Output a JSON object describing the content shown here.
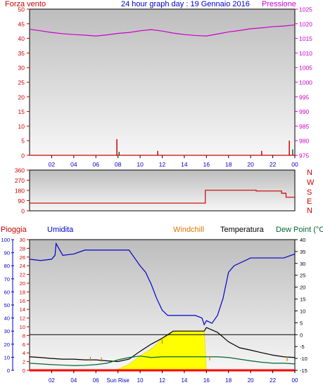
{
  "header": {
    "title": "24 hour graph day : 19 Gennaio 2016",
    "left_label": "Forza vento",
    "right_label": "Pressione"
  },
  "panel_labels": {
    "pioggia": "Pioggia",
    "umidita": "Umidita",
    "windchill": "Windchill",
    "temperatura": "Temperatura",
    "dewpoint": "Dew Point (°C"
  },
  "wind_compass": [
    "N",
    "W",
    "S",
    "E",
    "N"
  ],
  "sunrise_label": "Sun Rise",
  "colors": {
    "background": "#ffffff",
    "plot_bg_top": "#bdbdbd",
    "plot_bg_bottom": "#f6f6f6",
    "pressure": "#cc00cc",
    "wind": "#cc0000",
    "humidity": "#0000cc",
    "temperature": "#000000",
    "dewpoint": "#006633",
    "windchill": "#dd7700",
    "solar": "#ffff00",
    "rain": "#ff0000",
    "axis_red": "#cc0000",
    "axis_magenta": "#cc00cc",
    "axis_blue": "#0000cc",
    "axis_black": "#000000"
  },
  "chart_data": [
    {
      "type": "line",
      "name": "wind_pressure",
      "x_ticks": [
        "02",
        "04",
        "06",
        "08",
        "10",
        "12",
        "14",
        "16",
        "18",
        "20",
        "22",
        "00"
      ],
      "x_range_hours": [
        0,
        24
      ],
      "y_left": {
        "label": "Forza vento",
        "range": [
          0,
          50
        ],
        "ticks": [
          0,
          5,
          10,
          15,
          20,
          25,
          30,
          35,
          40,
          45,
          50
        ]
      },
      "y_right": {
        "label": "Pressione",
        "range": [
          975,
          1025
        ],
        "ticks": [
          975,
          980,
          985,
          990,
          995,
          1000,
          1005,
          1010,
          1015,
          1020,
          1025
        ]
      },
      "series": [
        {
          "name": "Pressione",
          "axis": "right",
          "color": "#cc00cc",
          "x": [
            0,
            1,
            2,
            3,
            4,
            5,
            6,
            7,
            8,
            9,
            10,
            11,
            12,
            13,
            14,
            15,
            16,
            17,
            18,
            19,
            20,
            21,
            22,
            23,
            24
          ],
          "values": [
            1018.1,
            1017.6,
            1017.0,
            1016.6,
            1016.3,
            1016.1,
            1015.8,
            1016.2,
            1016.7,
            1017.0,
            1017.6,
            1018.0,
            1017.5,
            1016.8,
            1016.3,
            1016.0,
            1015.8,
            1016.5,
            1017.2,
            1017.7,
            1018.3,
            1018.6,
            1019.0,
            1019.2,
            1019.6
          ]
        },
        {
          "name": "Forza vento (gust)",
          "axis": "left",
          "color": "#cc0000",
          "kind": "spikes",
          "x": [
            7.9,
            11.6,
            21.0,
            23.5
          ],
          "values": [
            5.5,
            1.5,
            1.5,
            5.0
          ]
        },
        {
          "name": "Forza vento (avg)",
          "axis": "left",
          "color": "#006633",
          "kind": "spikes",
          "x": [
            8.1,
            23.8
          ],
          "values": [
            1.2,
            2.0
          ]
        }
      ]
    },
    {
      "type": "line",
      "name": "wind_direction",
      "x_range_hours": [
        0,
        24
      ],
      "y_left": {
        "range": [
          0,
          360
        ],
        "ticks": [
          0,
          90,
          180,
          270,
          360
        ]
      },
      "series": [
        {
          "name": "Direzione",
          "color": "#cc0000",
          "step": true,
          "x": [
            0,
            15.9,
            15.9,
            20.5,
            20.5,
            22.8,
            22.8,
            23.2,
            23.2,
            24
          ],
          "values": [
            68,
            68,
            182,
            182,
            175,
            175,
            155,
            155,
            120,
            120
          ]
        }
      ]
    },
    {
      "type": "line",
      "name": "humidity_temperature",
      "x_ticks": [
        "02",
        "04",
        "06",
        "Sun Rise",
        "10",
        "12",
        "14",
        "16",
        "18",
        "20",
        "22",
        "00"
      ],
      "x_range_hours": [
        0,
        24
      ],
      "y_pioggia": {
        "label": "Pioggia",
        "range": [
          0,
          30
        ],
        "ticks": [
          0,
          2,
          4,
          6,
          8,
          10,
          12,
          14,
          16,
          18,
          20,
          22,
          24,
          26,
          28,
          30
        ]
      },
      "y_umidita": {
        "label": "Umidita",
        "range": [
          0,
          100
        ],
        "ticks": [
          0,
          10,
          20,
          30,
          40,
          50,
          60,
          70,
          80,
          90,
          100
        ]
      },
      "y_right": {
        "label": "Temperatura",
        "range": [
          -15,
          40
        ],
        "ticks": [
          -15,
          -10,
          -5,
          0,
          5,
          10,
          15,
          20,
          25,
          30,
          35,
          40
        ]
      },
      "reference_line_temp": 0,
      "series": [
        {
          "name": "Umidita",
          "axis": "umidita",
          "color": "#0000cc",
          "x": [
            0,
            1,
            2,
            2.3,
            2.4,
            3,
            4,
            5,
            6,
            7,
            8,
            9,
            9.5,
            10,
            10.5,
            11,
            11.5,
            12,
            12.5,
            13,
            14,
            15,
            15.6,
            15.8,
            16,
            16.5,
            17,
            17.5,
            18,
            18.5,
            19,
            20,
            21,
            22,
            23,
            24
          ],
          "values": [
            85,
            84,
            85,
            88,
            97,
            88,
            89,
            92,
            92,
            92,
            92,
            92,
            86,
            80,
            75,
            66,
            55,
            46,
            42,
            42,
            42,
            42,
            40,
            35,
            38,
            36,
            42,
            55,
            75,
            80,
            82,
            86,
            86,
            86,
            86,
            89
          ]
        },
        {
          "name": "Temperatura",
          "axis": "right",
          "color": "#000000",
          "x": [
            0,
            1,
            2,
            3,
            4,
            5,
            6,
            7,
            8,
            9,
            10,
            11,
            12,
            13,
            14,
            15,
            15.8,
            16,
            17,
            18,
            19,
            20,
            21,
            22,
            23,
            24
          ],
          "values": [
            -9.3,
            -9.6,
            -10.0,
            -10.3,
            -10.3,
            -10.6,
            -10.6,
            -11.0,
            -11.3,
            -10.3,
            -7.0,
            -4.0,
            -1.5,
            1.5,
            1.5,
            1.5,
            1.5,
            3.0,
            1.0,
            -3.0,
            -5.5,
            -6.5,
            -7.6,
            -8.6,
            -9.3,
            -9.6
          ]
        },
        {
          "name": "Dew Point",
          "axis": "right",
          "color": "#006633",
          "x": [
            0,
            1,
            2,
            3,
            4,
            5,
            6,
            7,
            8,
            9,
            10,
            11,
            12,
            13,
            14,
            15,
            16,
            17,
            18,
            19,
            20,
            21,
            22,
            23,
            24
          ],
          "values": [
            -12.0,
            -12.3,
            -12.6,
            -12.8,
            -13.0,
            -12.9,
            -12.6,
            -12.0,
            -10.6,
            -9.6,
            -9.0,
            -9.6,
            -9.3,
            -9.3,
            -9.3,
            -9.3,
            -9.3,
            -9.3,
            -9.6,
            -10.3,
            -11.0,
            -11.6,
            -12.0,
            -12.0,
            -12.3
          ]
        },
        {
          "name": "Windchill",
          "axis": "right",
          "color": "#dd7700",
          "kind": "spikes",
          "x": [
            5.5,
            6.5,
            12.0,
            16.3,
            23.3
          ],
          "values": [
            -9.3,
            -9.6,
            -2.0,
            -9.0,
            -9.3
          ]
        },
        {
          "name": "Solar",
          "axis": "right",
          "color": "#ffff00",
          "kind": "area",
          "x": [
            7.0,
            8.0,
            9.0,
            10.0,
            11.0,
            11.5,
            12.0,
            12.5,
            13.0,
            15.5,
            15.8,
            16.0
          ],
          "values": [
            -15,
            -14.5,
            -12.5,
            -9.0,
            -6.0,
            -4.0,
            -1.5,
            -0.5,
            1.5,
            1.5,
            1.5,
            -15
          ]
        },
        {
          "name": "Pioggia",
          "axis": "pioggia",
          "color": "#ff0000",
          "x": [
            0,
            24
          ],
          "values": [
            0,
            0
          ]
        }
      ]
    }
  ]
}
